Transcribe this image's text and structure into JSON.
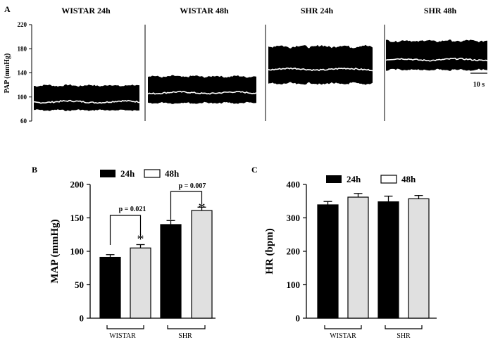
{
  "chart_data": [
    {
      "type": "line",
      "panel_label": "A",
      "ylabel": "PAP (mmHg)",
      "ylim": [
        60,
        220
      ],
      "yticks": [
        "60",
        "100",
        "140",
        "180",
        "220"
      ],
      "scale_bar_label": "10 s",
      "series": [
        {
          "name": "WISTAR 24h",
          "mean": 92,
          "pulse_min": 78,
          "pulse_max": 119
        },
        {
          "name": "WISTAR 48h",
          "mean": 107,
          "pulse_min": 90,
          "pulse_max": 134
        },
        {
          "name": "SHR 24h",
          "mean": 146,
          "pulse_min": 122,
          "pulse_max": 184
        },
        {
          "name": "SHR 48h",
          "mean": 162,
          "pulse_min": 145,
          "pulse_max": 193
        }
      ]
    },
    {
      "type": "bar",
      "panel_label": "B",
      "title": "",
      "xlabel": "",
      "ylabel": "MAP (mmHg)",
      "ylim": [
        0,
        200
      ],
      "yticks": [
        "0",
        "50",
        "100",
        "150",
        "200"
      ],
      "groups": [
        "WISTAR",
        "SHR"
      ],
      "legend": [
        "24h",
        "48h"
      ],
      "series": [
        {
          "name": "24h",
          "color": "#000000",
          "values": [
            91,
            140
          ],
          "errors": [
            4,
            6
          ]
        },
        {
          "name": "48h",
          "color": "#e0e0e0",
          "values": [
            105,
            161
          ],
          "errors": [
            5,
            5
          ]
        }
      ],
      "annotations": [
        {
          "group": "WISTAR",
          "p_value": "p = 0.021",
          "marker": "*"
        },
        {
          "group": "SHR",
          "p_value": "p = 0.007",
          "marker": "*"
        }
      ]
    },
    {
      "type": "bar",
      "panel_label": "C",
      "title": "",
      "xlabel": "",
      "ylabel": "HR (bpm)",
      "ylim": [
        0,
        400
      ],
      "yticks": [
        "0",
        "100",
        "200",
        "300",
        "400"
      ],
      "groups": [
        "WISTAR",
        "SHR"
      ],
      "legend": [
        "24h",
        "48h"
      ],
      "series": [
        {
          "name": "24h",
          "color": "#000000",
          "values": [
            339,
            348
          ],
          "errors": [
            10,
            17
          ]
        },
        {
          "name": "48h",
          "color": "#e0e0e0",
          "values": [
            362,
            357
          ],
          "errors": [
            11,
            10
          ]
        }
      ]
    }
  ]
}
